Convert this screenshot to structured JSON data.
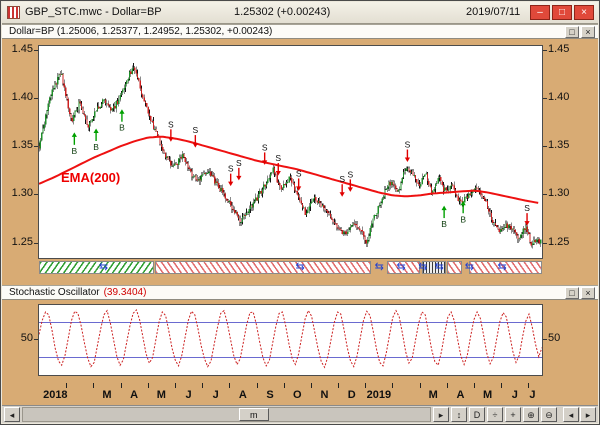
{
  "window": {
    "title": "GBP_STC.mwc - Dollar=BP",
    "quote": "1.25302 (+0.00243)",
    "date": "2019/07/11",
    "buttons": {
      "minimize": "–",
      "maximize": "□",
      "close": "×"
    }
  },
  "panels": {
    "price": {
      "title": "Dollar=BP (1.25006, 1.25377, 1.24952, 1.25302, +0.00243)",
      "ema_label": "EMA(200)",
      "buttons": {
        "maximize": "□",
        "close": "×"
      }
    },
    "stoch": {
      "title": "Stochastic Oscillator",
      "value": "(39.3404)",
      "buttons": {
        "maximize": "□",
        "close": "×"
      }
    }
  },
  "colors": {
    "tan": "#d8ab74",
    "up": "#1f8f2a",
    "down": "#cc2020",
    "wick": "#141414",
    "ema": "#ee1111",
    "stoch": "#cc2020",
    "ref": "#6a6ad0",
    "sell_arrow": "#e00000",
    "buy_arrow": "#00a000",
    "accent_red": "#e0493a"
  },
  "month_axis": {
    "labels": [
      {
        "text": "2018",
        "m": 0.15,
        "year": true
      },
      {
        "text": "M",
        "m": 2.5
      },
      {
        "text": "A",
        "m": 3.5
      },
      {
        "text": "M",
        "m": 4.5
      },
      {
        "text": "J",
        "m": 5.5
      },
      {
        "text": "J",
        "m": 6.5
      },
      {
        "text": "A",
        "m": 7.5
      },
      {
        "text": "S",
        "m": 8.5
      },
      {
        "text": "O",
        "m": 9.5
      },
      {
        "text": "N",
        "m": 10.5
      },
      {
        "text": "D",
        "m": 11.5
      },
      {
        "text": "2019",
        "m": 12.05,
        "year": true
      },
      {
        "text": "M",
        "m": 14.5
      },
      {
        "text": "A",
        "m": 15.5
      },
      {
        "text": "M",
        "m": 16.5
      },
      {
        "text": "J",
        "m": 17.5
      },
      {
        "text": "J",
        "m": 18.15
      }
    ]
  },
  "scrollbar": {
    "left_arrow": "◂",
    "right_arrow": "▸",
    "thumb_label": "m",
    "icons": [
      {
        "name": "resize-vertical-icon",
        "glyph": "↕"
      },
      {
        "name": "daily-mode-icon",
        "glyph": "D"
      },
      {
        "name": "divide-icon",
        "glyph": "÷"
      },
      {
        "name": "crosshair-icon",
        "glyph": "+"
      },
      {
        "name": "zoom-in-icon",
        "glyph": "⊕"
      },
      {
        "name": "zoom-out-icon",
        "glyph": "⊖"
      }
    ],
    "corner_arrows": [
      "◂",
      "▸"
    ]
  },
  "chart_data": [
    {
      "type": "candlestick",
      "name": "Dollar=BP",
      "x_unit": "months since 2018-01",
      "x_range": [
        0,
        18.5
      ],
      "y_range": [
        1.235,
        1.455
      ],
      "y_ticks": [
        1.45,
        1.4,
        1.35,
        1.3,
        1.25
      ],
      "close_keyframes": [
        [
          0,
          1.351
        ],
        [
          0.4,
          1.402
        ],
        [
          0.8,
          1.428
        ],
        [
          1.0,
          1.4
        ],
        [
          1.2,
          1.378
        ],
        [
          1.5,
          1.397
        ],
        [
          1.8,
          1.372
        ],
        [
          2.1,
          1.388
        ],
        [
          2.4,
          1.4
        ],
        [
          2.7,
          1.388
        ],
        [
          3.0,
          1.403
        ],
        [
          3.3,
          1.425
        ],
        [
          3.5,
          1.434
        ],
        [
          3.8,
          1.403
        ],
        [
          4.1,
          1.378
        ],
        [
          4.4,
          1.36
        ],
        [
          4.7,
          1.338
        ],
        [
          5.0,
          1.33
        ],
        [
          5.3,
          1.342
        ],
        [
          5.6,
          1.322
        ],
        [
          5.9,
          1.316
        ],
        [
          6.2,
          1.327
        ],
        [
          6.5,
          1.312
        ],
        [
          6.8,
          1.302
        ],
        [
          7.1,
          1.288
        ],
        [
          7.4,
          1.272
        ],
        [
          7.7,
          1.283
        ],
        [
          8.0,
          1.296
        ],
        [
          8.3,
          1.31
        ],
        [
          8.6,
          1.327
        ],
        [
          8.9,
          1.306
        ],
        [
          9.2,
          1.318
        ],
        [
          9.5,
          1.302
        ],
        [
          9.8,
          1.282
        ],
        [
          10.1,
          1.298
        ],
        [
          10.4,
          1.288
        ],
        [
          10.7,
          1.277
        ],
        [
          11.0,
          1.268
        ],
        [
          11.3,
          1.258
        ],
        [
          11.6,
          1.272
        ],
        [
          11.9,
          1.262
        ],
        [
          12.05,
          1.25
        ],
        [
          12.3,
          1.276
        ],
        [
          12.6,
          1.295
        ],
        [
          12.9,
          1.314
        ],
        [
          13.2,
          1.304
        ],
        [
          13.5,
          1.33
        ],
        [
          13.8,
          1.32
        ],
        [
          14.0,
          1.31
        ],
        [
          14.2,
          1.324
        ],
        [
          14.45,
          1.301
        ],
        [
          14.7,
          1.32
        ],
        [
          14.9,
          1.305
        ],
        [
          15.2,
          1.312
        ],
        [
          15.5,
          1.291
        ],
        [
          15.8,
          1.301
        ],
        [
          16.1,
          1.309
        ],
        [
          16.4,
          1.295
        ],
        [
          16.7,
          1.271
        ],
        [
          17.0,
          1.263
        ],
        [
          17.3,
          1.271
        ],
        [
          17.6,
          1.256
        ],
        [
          17.9,
          1.267
        ],
        [
          18.1,
          1.251
        ],
        [
          18.35,
          1.253
        ]
      ],
      "overlays": [
        {
          "name": "EMA(200)",
          "color": "#ee1111",
          "keyframes": [
            [
              0,
              1.312
            ],
            [
              0.5,
              1.318
            ],
            [
              1,
              1.325
            ],
            [
              1.5,
              1.332
            ],
            [
              2,
              1.339
            ],
            [
              2.5,
              1.345
            ],
            [
              3,
              1.351
            ],
            [
              3.5,
              1.356
            ],
            [
              4,
              1.36
            ],
            [
              4.5,
              1.361
            ],
            [
              5,
              1.359
            ],
            [
              5.5,
              1.356
            ],
            [
              6,
              1.352
            ],
            [
              6.5,
              1.348
            ],
            [
              7,
              1.344
            ],
            [
              7.5,
              1.34
            ],
            [
              8,
              1.336
            ],
            [
              8.5,
              1.333
            ],
            [
              9,
              1.33
            ],
            [
              9.5,
              1.327
            ],
            [
              10,
              1.323
            ],
            [
              10.5,
              1.319
            ],
            [
              11,
              1.315
            ],
            [
              11.5,
              1.311
            ],
            [
              12,
              1.307
            ],
            [
              12.5,
              1.303
            ],
            [
              13,
              1.3
            ],
            [
              13.5,
              1.299
            ],
            [
              14,
              1.3
            ],
            [
              14.5,
              1.302
            ],
            [
              15,
              1.303
            ],
            [
              15.5,
              1.304
            ],
            [
              16,
              1.305
            ],
            [
              16.5,
              1.303
            ],
            [
              17,
              1.3
            ],
            [
              17.5,
              1.297
            ],
            [
              18,
              1.294
            ],
            [
              18.4,
              1.292
            ]
          ]
        }
      ],
      "signals": {
        "buy_label": "B",
        "sell_label": "S",
        "buy": [
          [
            1.3,
            1.368
          ],
          [
            2.1,
            1.372
          ],
          [
            3.05,
            1.392
          ],
          [
            14.9,
            1.292
          ],
          [
            15.6,
            1.297
          ]
        ],
        "sell": [
          [
            4.85,
            1.353
          ],
          [
            5.75,
            1.347
          ],
          [
            7.05,
            1.307
          ],
          [
            7.35,
            1.313
          ],
          [
            8.3,
            1.329
          ],
          [
            8.8,
            1.318
          ],
          [
            9.55,
            1.302
          ],
          [
            11.15,
            1.296
          ],
          [
            11.45,
            1.301
          ],
          [
            13.55,
            1.332
          ],
          [
            17.95,
            1.266
          ]
        ]
      },
      "strip": {
        "icon_glyph": "⇆",
        "segments": [
          {
            "from": 0.05,
            "to": 4.25,
            "pattern": "green"
          },
          {
            "from": 4.3,
            "to": 12.2,
            "pattern": "red"
          },
          {
            "from": 12.8,
            "to": 14.0,
            "pattern": "red"
          },
          {
            "from": 14.05,
            "to": 14.95,
            "pattern": "dense"
          },
          {
            "from": 15.0,
            "to": 15.55,
            "pattern": "red"
          },
          {
            "from": 15.8,
            "to": 18.45,
            "pattern": "red"
          }
        ],
        "icons": [
          2.4,
          9.6,
          12.5,
          13.3,
          14.1,
          14.7,
          15.8,
          17.0
        ]
      }
    },
    {
      "type": "line",
      "name": "Stochastic Oscillator",
      "current": 39.3404,
      "y_range": [
        0,
        100
      ],
      "y_ticks": [
        50
      ],
      "ref_lines": [
        75,
        25
      ],
      "values": [
        58,
        78,
        90,
        86,
        64,
        38,
        20,
        14,
        28,
        52,
        78,
        91,
        88,
        70,
        46,
        24,
        12,
        18,
        42,
        66,
        86,
        92,
        74,
        50,
        26,
        14,
        22,
        46,
        70,
        88,
        93,
        79,
        55,
        30,
        17,
        25,
        50,
        76,
        90,
        85,
        63,
        38,
        21,
        13,
        28,
        53,
        78,
        91,
        86,
        66,
        41,
        23,
        12,
        20,
        44,
        68,
        88,
        92,
        75,
        51,
        28,
        15,
        23,
        47,
        72,
        89,
        90,
        72,
        47,
        25,
        13,
        21,
        46,
        70,
        88,
        90,
        71,
        45,
        24,
        15,
        30,
        56,
        80,
        92,
        84,
        61,
        37,
        19,
        11,
        26,
        51,
        75,
        90,
        87,
        65,
        39,
        20,
        12,
        27,
        53,
        78,
        91,
        85,
        62,
        37,
        18,
        13,
        31,
        57,
        82,
        92,
        83,
        59,
        33,
        17,
        24,
        49,
        74,
        90,
        86,
        62,
        36,
        19,
        14,
        33,
        59,
        83,
        90,
        77,
        51,
        27,
        15,
        29,
        55,
        79,
        90,
        81,
        57,
        31,
        16,
        25,
        51,
        76,
        89,
        83,
        59,
        34,
        18,
        28,
        54,
        77,
        87,
        68,
        44,
        26,
        39.34
      ]
    }
  ]
}
